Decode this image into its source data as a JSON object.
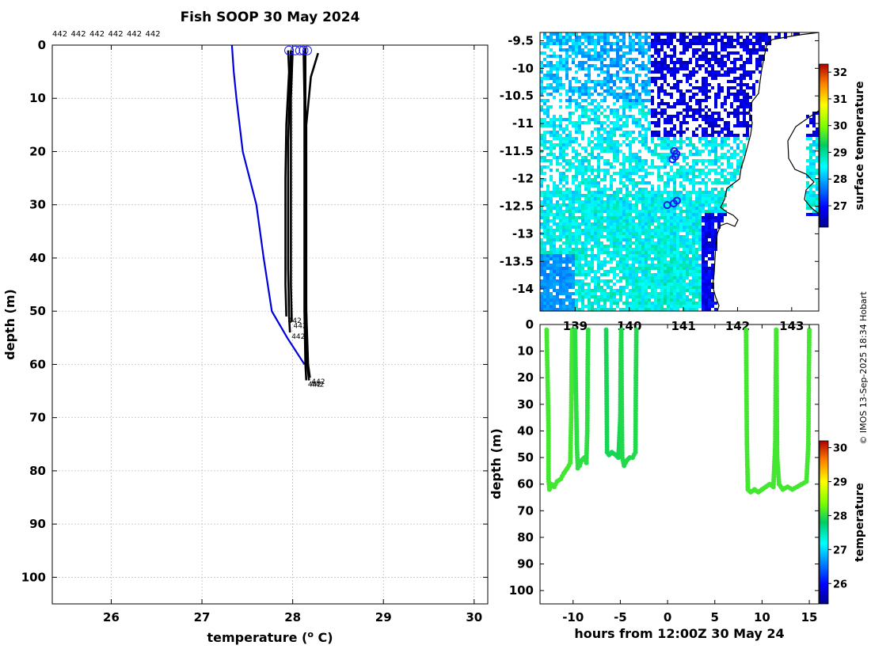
{
  "title": "Fish SOOP 30 May 2024",
  "copyright": "© IMOS 13-Sep-2025 18:34 Hobart",
  "chart_data": [
    {
      "id": "profiles",
      "type": "line",
      "xlabel": "temperature (° C)",
      "xlabel_parts": {
        "pre": "temperature (",
        "sup": "o",
        "post": " C)"
      },
      "ylabel": "depth (m)",
      "xlim": [
        25.35,
        30.15
      ],
      "ylim": [
        0,
        105
      ],
      "y_inverted": true,
      "grid": true,
      "xticks": [
        26,
        27,
        28,
        29,
        30
      ],
      "yticks": [
        0,
        10,
        20,
        30,
        40,
        50,
        60,
        70,
        80,
        90,
        100
      ],
      "top_labels": [
        "442",
        "442",
        "442",
        "442",
        "442",
        "442"
      ],
      "end_labels": [
        "442",
        "442",
        "442",
        "442",
        "442",
        "442"
      ],
      "climatology": {
        "name": "climatology",
        "color": "#0000dd",
        "points": [
          [
            27.33,
            0
          ],
          [
            27.35,
            5
          ],
          [
            27.38,
            10
          ],
          [
            27.45,
            20
          ],
          [
            27.6,
            30
          ],
          [
            27.68,
            40
          ],
          [
            27.77,
            50
          ],
          [
            27.94,
            55
          ],
          [
            28.13,
            60
          ]
        ]
      },
      "series": [
        {
          "name": "profile 1",
          "color": "#000000",
          "points": [
            [
              27.95,
              1
            ],
            [
              27.96,
              5
            ],
            [
              27.93,
              15
            ],
            [
              27.92,
              25
            ],
            [
              27.92,
              35
            ],
            [
              27.92,
              45
            ],
            [
              27.93,
              51
            ]
          ]
        },
        {
          "name": "profile 2",
          "color": "#000000",
          "points": [
            [
              27.98,
              1
            ],
            [
              27.97,
              8
            ],
            [
              27.95,
              18
            ],
            [
              27.95,
              30
            ],
            [
              27.95,
              42
            ],
            [
              27.96,
              51
            ],
            [
              27.97,
              54
            ]
          ]
        },
        {
          "name": "profile 3",
          "color": "#000000",
          "points": [
            [
              28.0,
              1
            ],
            [
              27.98,
              10
            ],
            [
              27.98,
              20
            ],
            [
              27.98,
              35
            ],
            [
              27.98,
              45
            ],
            [
              27.99,
              52
            ]
          ]
        },
        {
          "name": "profile 4",
          "color": "#000000",
          "points": [
            [
              28.12,
              1
            ],
            [
              28.13,
              10
            ],
            [
              28.13,
              30
            ],
            [
              28.13,
              50
            ],
            [
              28.14,
              60
            ],
            [
              28.15,
              63
            ]
          ]
        },
        {
          "name": "profile 5",
          "color": "#000000",
          "points": [
            [
              28.14,
              0.5
            ],
            [
              28.14,
              10
            ],
            [
              28.14,
              30
            ],
            [
              28.15,
              50
            ],
            [
              28.16,
              60
            ],
            [
              28.18,
              63
            ]
          ]
        },
        {
          "name": "profile 6",
          "color": "#000000",
          "points": [
            [
              28.28,
              1.5
            ],
            [
              28.2,
              6
            ],
            [
              28.15,
              15
            ],
            [
              28.15,
              30
            ],
            [
              28.15,
              50
            ],
            [
              28.17,
              60
            ],
            [
              28.19,
              62.5
            ]
          ]
        }
      ],
      "start_markers": [
        [
          27.96,
          1
        ],
        [
          28.03,
          1
        ],
        [
          28.08,
          1
        ],
        [
          28.12,
          1
        ],
        [
          28.16,
          1
        ]
      ]
    },
    {
      "id": "map",
      "type": "heatmap",
      "yticks": [
        "-9.5",
        "-10",
        "-10.5",
        "-11",
        "-11.5",
        "-12",
        "-12.5",
        "-13",
        "-13.5",
        "-14"
      ],
      "ytick_values": [
        -9.5,
        -10,
        -10.5,
        -11,
        -11.5,
        -12,
        -12.5,
        -13,
        -13.5,
        -14
      ],
      "xticks": [
        "139",
        "140",
        "141",
        "142",
        "143"
      ],
      "xtick_values": [
        139,
        140,
        141,
        142,
        143
      ],
      "xlim": [
        138.35,
        143.5
      ],
      "ylim": [
        -14.4,
        -9.35
      ],
      "colorbar": {
        "label": "surface temperature",
        "ticks": [
          "27",
          "28",
          "29",
          "30",
          "31",
          "32"
        ],
        "tick_values": [
          27,
          28,
          29,
          30,
          31,
          32
        ],
        "range": [
          26.2,
          32.3
        ]
      },
      "station_markers": [
        [
          140.83,
          -11.5
        ],
        [
          140.87,
          -11.55
        ],
        [
          140.85,
          -11.6
        ],
        [
          140.8,
          -11.65
        ],
        [
          140.88,
          -12.4
        ],
        [
          140.82,
          -12.45
        ],
        [
          140.7,
          -12.48
        ]
      ]
    },
    {
      "id": "timeseries",
      "type": "scatter",
      "xlabel": "hours from 12:00Z 30 May 24",
      "ylabel": "depth (m)",
      "xlim": [
        -13.5,
        16.0
      ],
      "ylim": [
        0,
        105
      ],
      "y_inverted": true,
      "xticks": [
        "-10",
        "-5",
        "0",
        "5",
        "10",
        "15"
      ],
      "xtick_values": [
        -10,
        -5,
        0,
        5,
        10,
        15
      ],
      "yticks": [
        "0",
        "10",
        "20",
        "30",
        "40",
        "50",
        "60",
        "70",
        "80",
        "90",
        "100"
      ],
      "ytick_values": [
        0,
        10,
        20,
        30,
        40,
        50,
        60,
        70,
        80,
        90,
        100
      ],
      "colorbar": {
        "label": "temperature",
        "ticks": [
          "26",
          "27",
          "28",
          "29",
          "30"
        ],
        "tick_values": [
          26,
          27,
          28,
          29,
          30
        ],
        "range": [
          25.4,
          30.2
        ]
      },
      "casts": [
        {
          "t0": -12.8,
          "t1": -10.2,
          "temp": 28.1
        },
        {
          "t0": -10.2,
          "t1": -8.4,
          "temp": 28.0
        },
        {
          "t0": -6.5,
          "t1": -4.9,
          "temp": 27.9
        },
        {
          "t0": -4.9,
          "t1": -3.3,
          "temp": 27.95
        },
        {
          "t0": 8.3,
          "t1": 11.5,
          "temp": 28.1
        },
        {
          "t0": 11.5,
          "t1": 15.0,
          "temp": 28.1
        }
      ]
    }
  ]
}
